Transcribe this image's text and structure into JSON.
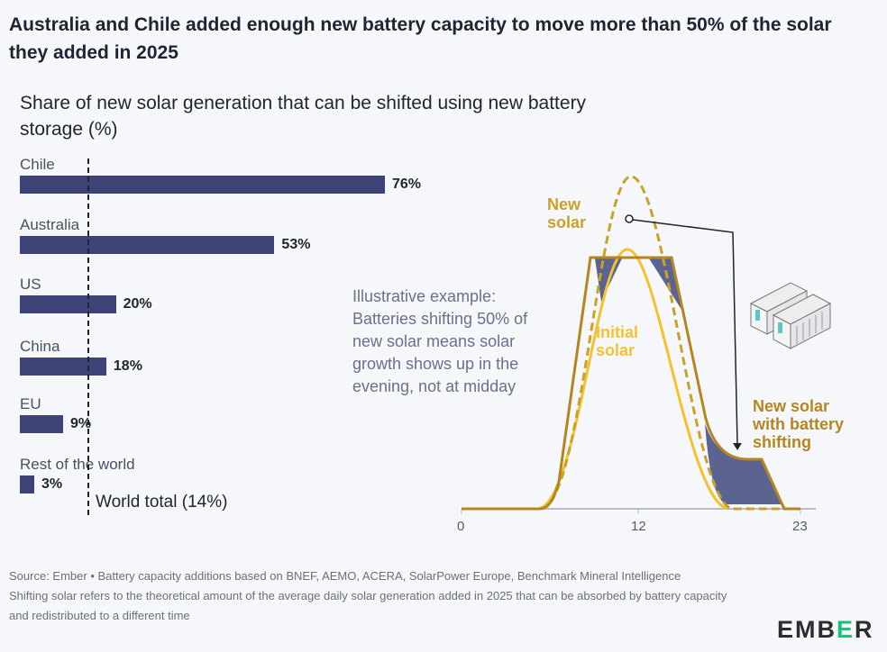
{
  "title": "Australia and Chile added enough new battery capacity to move more than 50% of the solar they added in 2025",
  "chart_data": [
    {
      "type": "bar",
      "orientation": "horizontal",
      "title": "Share of new solar generation that can be shifted using new battery storage (%)",
      "categories": [
        "Chile",
        "Australia",
        "US",
        "China",
        "EU",
        "Rest of the world"
      ],
      "values": [
        76,
        53,
        20,
        18,
        9,
        3
      ],
      "value_labels": [
        "76%",
        "53%",
        "20%",
        "18%",
        "9%",
        "3%"
      ],
      "reference_line": {
        "value": 14,
        "label": "World total (14%)",
        "style": "dashed"
      },
      "bar_color": "#3d4277"
    },
    {
      "type": "line",
      "annotation": "Illustrative example: Batteries shifting 50% of new solar means solar growth shows up in the evening, not at midday",
      "x_ticks": [
        "0",
        "12",
        "23"
      ],
      "series_labels": {
        "new_solar": "New solar",
        "initial_solar": "Initial solar",
        "shifted": "New solar with battery shifting"
      },
      "colors": {
        "new_solar": "#c9a227",
        "initial_solar": "#f2c32e",
        "shifted": "#b5861f",
        "shifted_area": "#5b6491"
      }
    }
  ],
  "footer": {
    "source": "Source: Ember • Battery capacity additions based on BNEF, AEMO, ACERA, SolarPower Europe, Benchmark Mineral Intelligence",
    "note": "Shifting solar refers to the theoretical amount of the average daily solar generation added in 2025 that can be absorbed by battery capacity and redistributed to a different time"
  },
  "logo": {
    "text": "EMBER",
    "part1": "EMB",
    "part2": "E",
    "part3": "R"
  }
}
